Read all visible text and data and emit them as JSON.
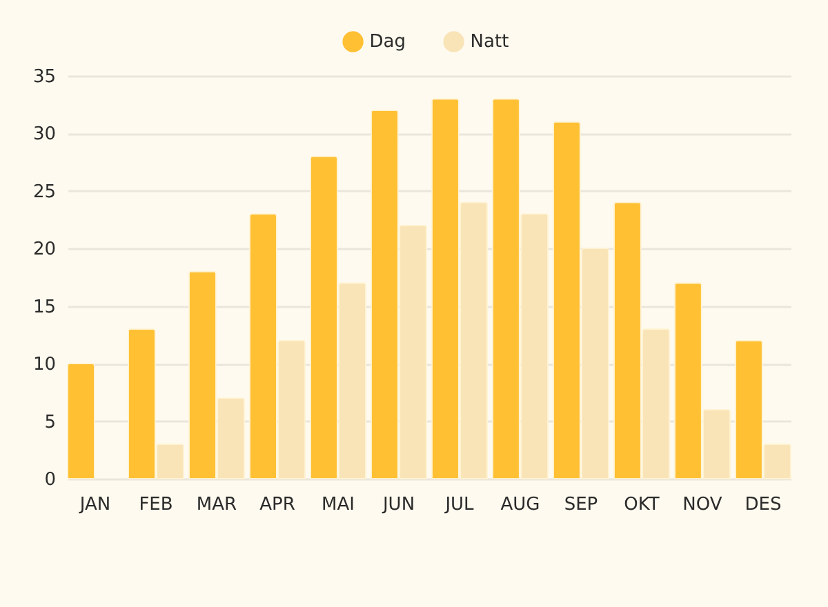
{
  "chart_data": {
    "type": "bar",
    "categories": [
      "JAN",
      "FEB",
      "MAR",
      "APR",
      "MAI",
      "JUN",
      "JUL",
      "AUG",
      "SEP",
      "OKT",
      "NOV",
      "DES"
    ],
    "series": [
      {
        "name": "Dag",
        "color": "#ffc034",
        "values": [
          10,
          13,
          18,
          23,
          28,
          32,
          33,
          33,
          31,
          24,
          17,
          12
        ]
      },
      {
        "name": "Natt",
        "color": "#f9e4b8",
        "values": [
          null,
          3,
          7,
          12,
          17,
          22,
          24,
          23,
          20,
          13,
          6,
          3
        ]
      }
    ],
    "ylim": [
      0,
      35
    ],
    "yticks": [
      0,
      5,
      10,
      15,
      20,
      25,
      30,
      35
    ],
    "grid": "y",
    "legend": "top"
  }
}
